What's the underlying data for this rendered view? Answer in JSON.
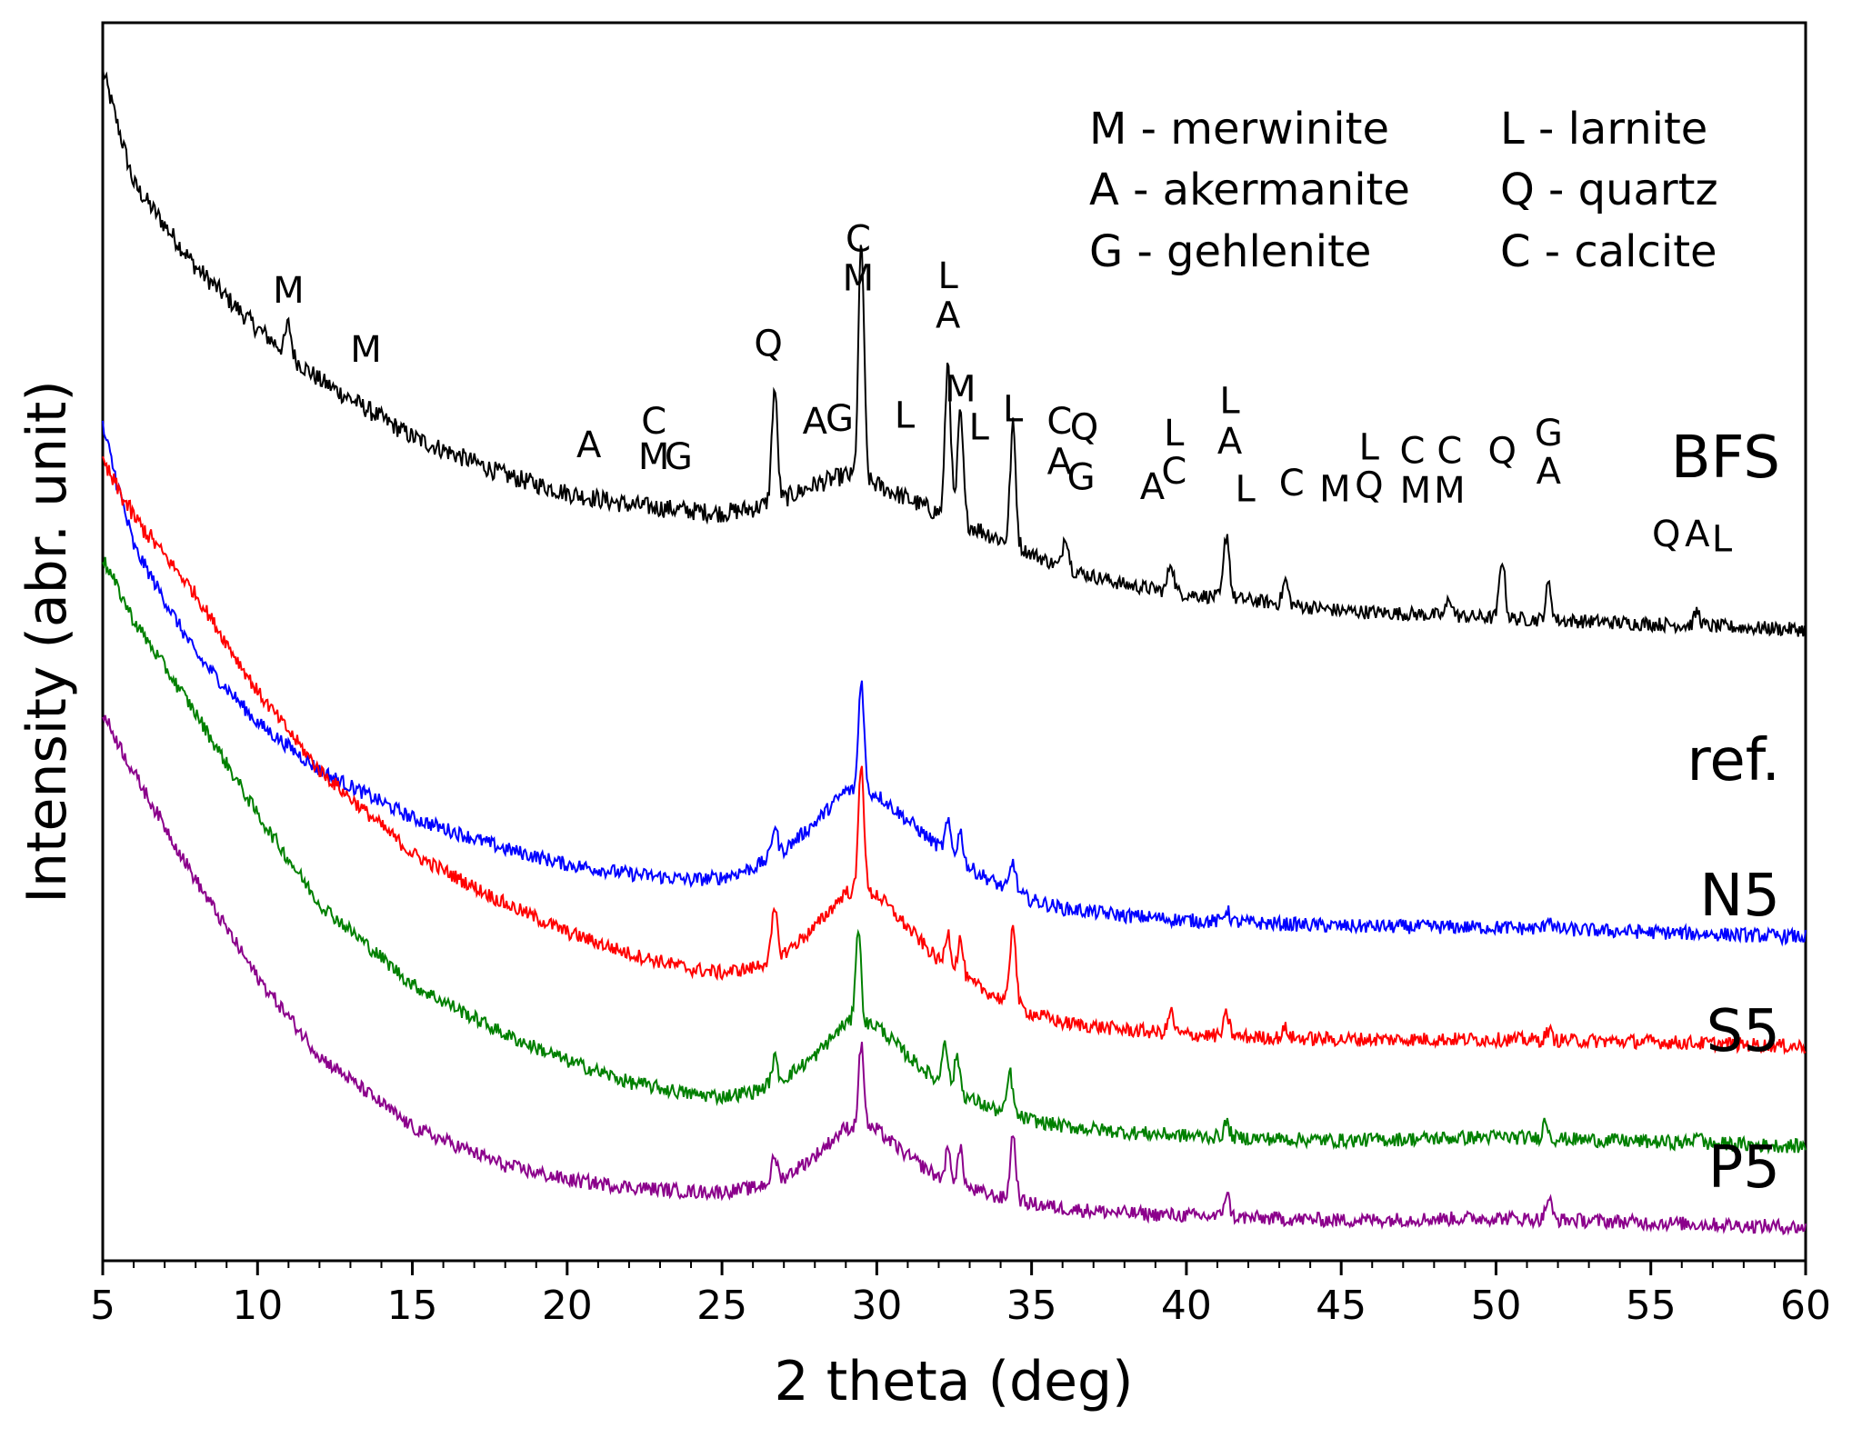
{
  "chart_data": {
    "type": "line",
    "title": "",
    "xlabel": "2 theta (deg)",
    "ylabel": "Intensity (abr. unit)",
    "xlim": [
      5,
      60
    ],
    "xticks": [
      "5",
      "10",
      "15",
      "20",
      "25",
      "30",
      "35",
      "40",
      "45",
      "50",
      "55",
      "60"
    ],
    "yticks": [],
    "legend": {
      "position": "top-right",
      "entries": [
        "M - merwinite",
        "A - akermanite",
        "G - gehlenite",
        "L - larnite",
        "Q - quartz",
        "C - calcite"
      ]
    },
    "series": [
      {
        "name": "BFS",
        "color": "#000000",
        "x": [
          5,
          6,
          8,
          10,
          12,
          15,
          18,
          20,
          22,
          24,
          25,
          26,
          27,
          28,
          29,
          30,
          31,
          32,
          33,
          34,
          35,
          36,
          38,
          40,
          42,
          45,
          50,
          55,
          60
        ],
        "y": [
          1000,
          905,
          835,
          783,
          740,
          692,
          660,
          645,
          635,
          630,
          628,
          632,
          640,
          652,
          660,
          652,
          640,
          628,
          618,
          606,
          594,
          582,
          568,
          560,
          555,
          546,
          540,
          535,
          530
        ],
        "peaks": [
          [
            11,
            25
          ],
          [
            26.7,
            95
          ],
          [
            29.5,
            200
          ],
          [
            32.3,
            130
          ],
          [
            32.7,
            90
          ],
          [
            34.4,
            100
          ],
          [
            36.1,
            30
          ],
          [
            39.5,
            25
          ],
          [
            41.3,
            55
          ],
          [
            43.2,
            20
          ],
          [
            48.5,
            15
          ],
          [
            50.2,
            50
          ],
          [
            51.7,
            30
          ],
          [
            56.5,
            12
          ]
        ]
      },
      {
        "name": "ref.",
        "color": "#0000ff",
        "x": [
          5,
          6,
          8,
          10,
          12,
          15,
          18,
          20,
          22,
          24,
          25,
          26,
          27,
          28,
          29,
          30,
          31,
          32,
          33,
          34,
          35,
          36,
          38,
          40,
          42,
          45,
          50,
          55,
          60
        ],
        "y": [
          700,
          600,
          510,
          452,
          412,
          372,
          346,
          333,
          325,
          320,
          322,
          330,
          345,
          368,
          395,
          392,
          370,
          348,
          330,
          315,
          303,
          296,
          290,
          286,
          284,
          281,
          280,
          276,
          272
        ],
        "peaks": [
          [
            26.7,
            25
          ],
          [
            29.5,
            95
          ],
          [
            32.3,
            25
          ],
          [
            32.7,
            25
          ],
          [
            34.4,
            25
          ],
          [
            41.3,
            10
          ],
          [
            51.7,
            10
          ]
        ]
      },
      {
        "name": "N5",
        "color": "#ff0000",
        "x": [
          5,
          6,
          8,
          10,
          12,
          15,
          18,
          20,
          22,
          24,
          25,
          26,
          27,
          28,
          29,
          30,
          31,
          32,
          33,
          34,
          35,
          36,
          38,
          40,
          42,
          45,
          50,
          55,
          60
        ],
        "y": [
          670,
          625,
          560,
          478,
          412,
          342,
          300,
          276,
          258,
          245,
          242,
          246,
          258,
          280,
          310,
          308,
          280,
          252,
          234,
          220,
          208,
          200,
          194,
          190,
          188,
          186,
          186,
          184,
          180
        ],
        "peaks": [
          [
            26.7,
            40
          ],
          [
            29.5,
            110
          ],
          [
            32.3,
            30
          ],
          [
            32.7,
            30
          ],
          [
            34.4,
            70
          ],
          [
            39.5,
            18
          ],
          [
            41.3,
            18
          ],
          [
            43.2,
            8
          ],
          [
            51.7,
            8
          ]
        ]
      },
      {
        "name": "S5",
        "color": "#008000",
        "x": [
          5,
          6,
          8,
          10,
          12,
          15,
          18,
          20,
          22,
          24,
          25,
          26,
          27,
          28,
          29,
          30,
          31,
          32,
          33,
          34,
          35,
          36,
          38,
          40,
          42,
          45,
          50,
          55,
          60
        ],
        "y": [
          590,
          538,
          460,
          375,
          300,
          232,
          190,
          168,
          150,
          140,
          138,
          142,
          153,
          172,
          200,
          198,
          172,
          150,
          136,
          125,
          118,
          113,
          108,
          105,
          103,
          101,
          104,
          100,
          96
        ],
        "peaks": [
          [
            26.7,
            20
          ],
          [
            29.4,
            80
          ],
          [
            32.2,
            40
          ],
          [
            32.6,
            30
          ],
          [
            34.3,
            35
          ],
          [
            41.3,
            12
          ],
          [
            51.6,
            15
          ],
          [
            56.5,
            10
          ]
        ]
      },
      {
        "name": "P5",
        "color": "#8b008b",
        "x": [
          5,
          6,
          8,
          10,
          12,
          15,
          18,
          20,
          22,
          24,
          25,
          26,
          27,
          28,
          29,
          30,
          31,
          32,
          33,
          34,
          35,
          36,
          38,
          40,
          42,
          45,
          50,
          55,
          60
        ],
        "y": [
          460,
          410,
          320,
          238,
          172,
          112,
          80,
          68,
          62,
          58,
          58,
          61,
          70,
          88,
          112,
          110,
          88,
          70,
          60,
          53,
          48,
          44,
          40,
          38,
          36,
          34,
          36,
          32,
          28
        ],
        "peaks": [
          [
            26.7,
            20
          ],
          [
            29.5,
            70
          ],
          [
            32.3,
            25
          ],
          [
            32.7,
            30
          ],
          [
            34.4,
            55
          ],
          [
            41.3,
            20
          ],
          [
            51.7,
            18
          ]
        ]
      }
    ],
    "series_labels": [
      "BFS",
      "ref.",
      "N5",
      "S5",
      "P5"
    ],
    "annotations": [
      {
        "text": "M",
        "x": 11.0,
        "y": 805
      },
      {
        "text": "M",
        "x": 13.5,
        "y": 755
      },
      {
        "text": "A",
        "x": 20.7,
        "y": 675
      },
      {
        "text": "C",
        "x": 22.8,
        "y": 695
      },
      {
        "text": "M",
        "x": 22.8,
        "y": 665
      },
      {
        "text": "G",
        "x": 23.6,
        "y": 665
      },
      {
        "text": "Q",
        "x": 26.5,
        "y": 760
      },
      {
        "text": "A",
        "x": 28.0,
        "y": 695
      },
      {
        "text": "G",
        "x": 28.8,
        "y": 697
      },
      {
        "text": "C",
        "x": 29.4,
        "y": 848
      },
      {
        "text": "M",
        "x": 29.4,
        "y": 815
      },
      {
        "text": "L",
        "x": 30.9,
        "y": 700
      },
      {
        "text": "L",
        "x": 32.3,
        "y": 817
      },
      {
        "text": "A",
        "x": 32.3,
        "y": 784
      },
      {
        "text": "M",
        "x": 32.7,
        "y": 722
      },
      {
        "text": "L",
        "x": 33.3,
        "y": 690
      },
      {
        "text": "L",
        "x": 34.4,
        "y": 705
      },
      {
        "text": "C",
        "x": 35.9,
        "y": 695
      },
      {
        "text": "Q",
        "x": 36.7,
        "y": 690
      },
      {
        "text": "A",
        "x": 35.9,
        "y": 661
      },
      {
        "text": "G",
        "x": 36.6,
        "y": 648
      },
      {
        "text": "L",
        "x": 39.6,
        "y": 685
      },
      {
        "text": "C",
        "x": 39.6,
        "y": 653
      },
      {
        "text": "A",
        "x": 38.9,
        "y": 640
      },
      {
        "text": "L",
        "x": 41.4,
        "y": 712
      },
      {
        "text": "A",
        "x": 41.4,
        "y": 678
      },
      {
        "text": "L",
        "x": 41.9,
        "y": 638
      },
      {
        "text": "C",
        "x": 43.4,
        "y": 643
      },
      {
        "text": "M",
        "x": 44.8,
        "y": 638
      },
      {
        "text": "L",
        "x": 45.9,
        "y": 673
      },
      {
        "text": "Q",
        "x": 45.9,
        "y": 641
      },
      {
        "text": "C",
        "x": 47.3,
        "y": 670
      },
      {
        "text": "M",
        "x": 47.4,
        "y": 637
      },
      {
        "text": "C",
        "x": 48.5,
        "y": 670
      },
      {
        "text": "M",
        "x": 48.5,
        "y": 637
      },
      {
        "text": "Q",
        "x": 50.2,
        "y": 670
      },
      {
        "text": "G",
        "x": 51.7,
        "y": 685
      },
      {
        "text": "A",
        "x": 51.7,
        "y": 653
      },
      {
        "text": "Q",
        "x": 55.5,
        "y": 600
      },
      {
        "text": "A",
        "x": 56.5,
        "y": 600
      },
      {
        "text": "L",
        "x": 57.3,
        "y": 596
      }
    ]
  }
}
